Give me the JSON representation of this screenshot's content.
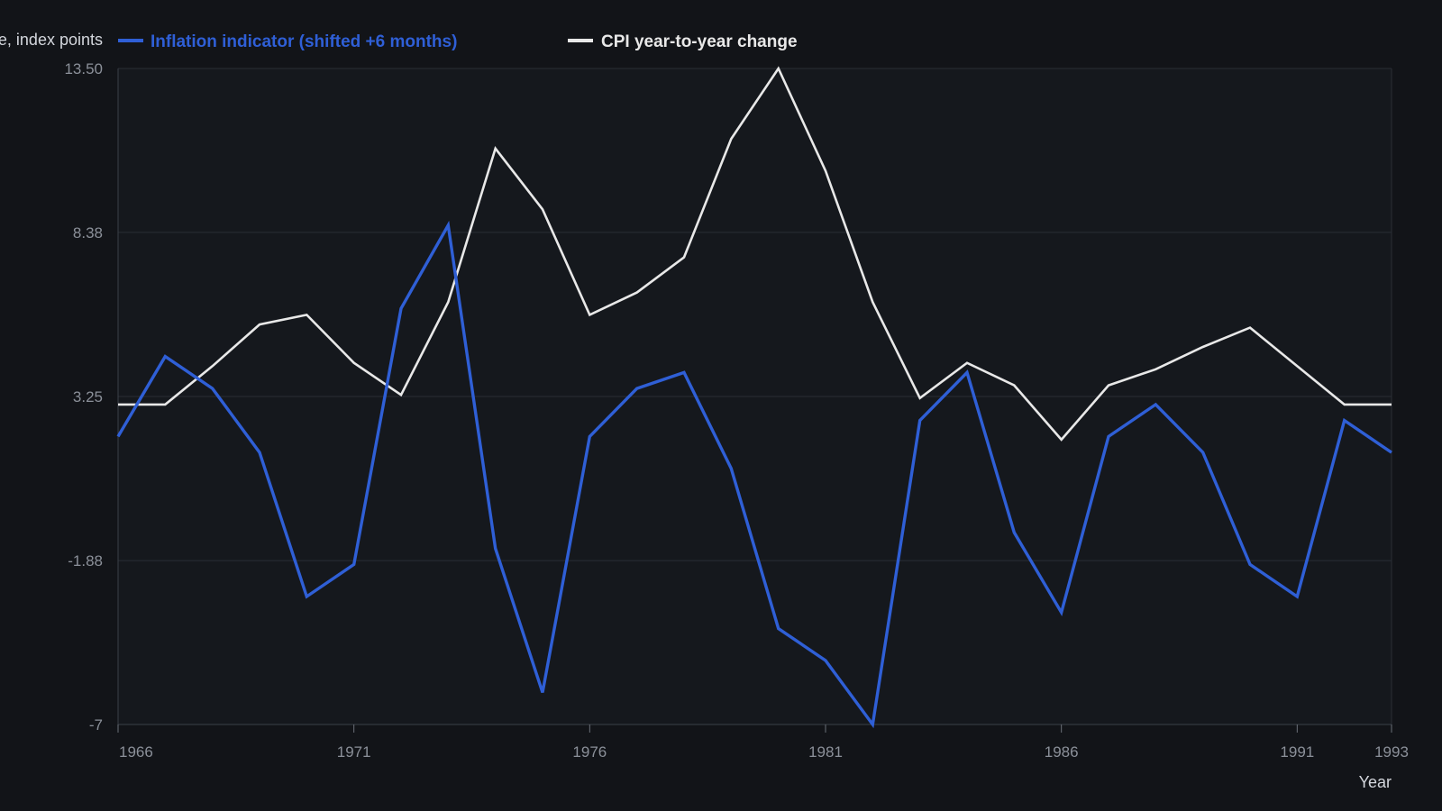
{
  "chart_data": {
    "type": "line",
    "title": "",
    "ylabel": "CPI change, index points",
    "xlabel": "Year",
    "ylim": [
      -7,
      13.5
    ],
    "yticks": [
      "13.50",
      "8.38",
      "3.25",
      "-1.88",
      "-7"
    ],
    "ytick_values": [
      13.5,
      8.38,
      3.25,
      -1.88,
      -7
    ],
    "xlim": [
      1966,
      1993
    ],
    "xticks": [
      "1966",
      "1971",
      "1976",
      "1981",
      "1986",
      "1991",
      "1993"
    ],
    "xtick_values": [
      1966,
      1971,
      1976,
      1981,
      1986,
      1991,
      1993
    ],
    "grid": true,
    "legend_position": "top-left",
    "x": [
      1966,
      1967,
      1968,
      1969,
      1970,
      1971,
      1972,
      1973,
      1974,
      1975,
      1976,
      1977,
      1978,
      1979,
      1980,
      1981,
      1982,
      1983,
      1984,
      1985,
      1986,
      1987,
      1988,
      1989,
      1990,
      1991,
      1992,
      1993
    ],
    "series": [
      {
        "name": "Inflation indicator (shifted +6 months)",
        "color": "#2f5fd6",
        "values": [
          2.0,
          4.5,
          3.5,
          1.5,
          -3.0,
          -2.0,
          6.0,
          8.6,
          -1.5,
          -6.0,
          2.0,
          3.5,
          4.0,
          1.0,
          -4.0,
          -5.0,
          -7.0,
          2.5,
          4.0,
          -1.0,
          -3.5,
          2.0,
          3.0,
          1.5,
          -2.0,
          -3.0,
          2.5,
          1.5
        ]
      },
      {
        "name": "CPI year-to-year change",
        "color": "#e8e8e8",
        "values": [
          3.0,
          3.0,
          4.2,
          5.5,
          5.8,
          4.3,
          3.3,
          6.2,
          11.0,
          9.1,
          5.8,
          6.5,
          7.6,
          11.3,
          13.5,
          10.3,
          6.2,
          3.2,
          4.3,
          3.6,
          1.9,
          3.6,
          4.1,
          4.8,
          5.4,
          4.2,
          3.0,
          3.0
        ]
      }
    ]
  }
}
